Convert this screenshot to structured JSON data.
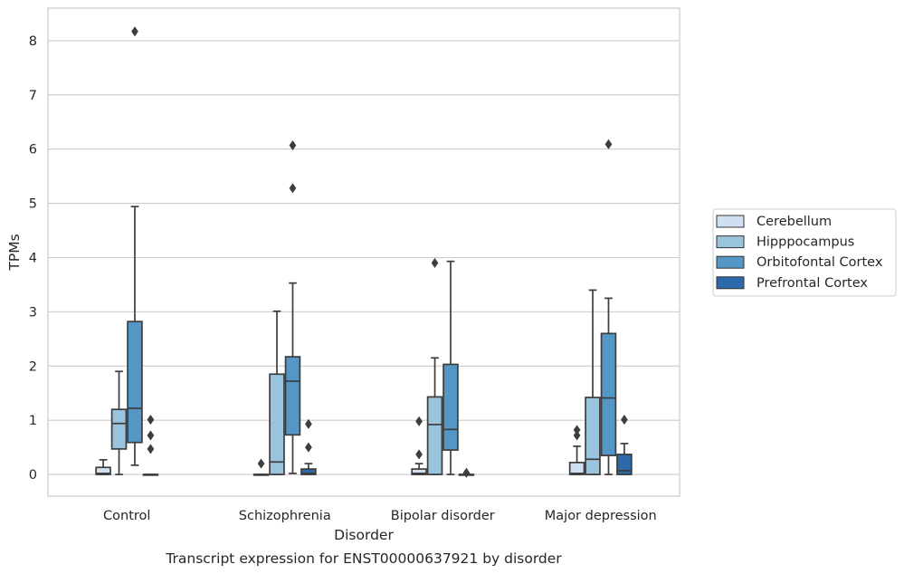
{
  "chart_data": {
    "type": "box",
    "title": "",
    "caption": "Transcript expression for ENST00000637921 by disorder",
    "xlabel": "Disorder",
    "ylabel": "TPMs",
    "ylim": [
      -0.4,
      8.6
    ],
    "yticks": [
      0,
      1,
      2,
      3,
      4,
      5,
      6,
      7,
      8
    ],
    "categories": [
      "Control",
      "Schizophrenia",
      "Bipolar disorder",
      "Major depression"
    ],
    "legend_placement": "right",
    "grid": true,
    "series": [
      {
        "name": "Cerebellum",
        "color": "#d1e0f0",
        "boxes": [
          {
            "q1": 0,
            "median": 0.02,
            "q3": 0.13,
            "whisker_low": 0,
            "whisker_high": 0.27,
            "outliers": []
          },
          {
            "q1": 0,
            "median": 0,
            "q3": 0,
            "whisker_low": 0,
            "whisker_high": 0,
            "outliers": [
              0.2
            ]
          },
          {
            "q1": 0,
            "median": 0.02,
            "q3": 0.1,
            "whisker_low": 0,
            "whisker_high": 0.2,
            "outliers": [
              0.37,
              0.98
            ]
          },
          {
            "q1": 0,
            "median": 0.02,
            "q3": 0.22,
            "whisker_low": 0,
            "whisker_high": 0.52,
            "outliers": [
              0.72,
              0.82
            ]
          }
        ]
      },
      {
        "name": "Hipppocampus",
        "color": "#9ac3dd",
        "boxes": [
          {
            "q1": 0.47,
            "median": 0.94,
            "q3": 1.2,
            "whisker_low": 0,
            "whisker_high": 1.9,
            "outliers": []
          },
          {
            "q1": 0,
            "median": 0.23,
            "q3": 1.85,
            "whisker_low": 0,
            "whisker_high": 3.01,
            "outliers": []
          },
          {
            "q1": 0,
            "median": 0.92,
            "q3": 1.43,
            "whisker_low": 0,
            "whisker_high": 2.15,
            "outliers": [
              3.9
            ]
          },
          {
            "q1": 0,
            "median": 0.28,
            "q3": 1.42,
            "whisker_low": 0,
            "whisker_high": 3.4,
            "outliers": []
          }
        ]
      },
      {
        "name": "Orbitofontal Cortex",
        "color": "#5496c5",
        "boxes": [
          {
            "q1": 0.59,
            "median": 1.22,
            "q3": 2.82,
            "whisker_low": 0.17,
            "whisker_high": 4.94,
            "outliers": [
              8.17
            ]
          },
          {
            "q1": 0.73,
            "median": 1.72,
            "q3": 2.17,
            "whisker_low": 0.02,
            "whisker_high": 3.53,
            "outliers": [
              5.28,
              6.07
            ]
          },
          {
            "q1": 0.45,
            "median": 0.83,
            "q3": 2.03,
            "whisker_low": 0,
            "whisker_high": 3.93,
            "outliers": []
          },
          {
            "q1": 0.35,
            "median": 1.41,
            "q3": 2.6,
            "whisker_low": 0,
            "whisker_high": 3.25,
            "outliers": [
              6.09
            ]
          }
        ]
      },
      {
        "name": "Prefrontal Cortex",
        "color": "#2b69a8",
        "boxes": [
          {
            "q1": 0,
            "median": 0,
            "q3": 0,
            "whisker_low": 0,
            "whisker_high": 0,
            "outliers": [
              0.47,
              0.72,
              1.01
            ]
          },
          {
            "q1": 0,
            "median": 0.02,
            "q3": 0.1,
            "whisker_low": 0,
            "whisker_high": 0.2,
            "outliers": [
              0.5,
              0.93
            ]
          },
          {
            "q1": 0,
            "median": 0,
            "q3": 0,
            "whisker_low": 0,
            "whisker_high": 0,
            "outliers": [
              0.03
            ]
          },
          {
            "q1": 0,
            "median": 0.07,
            "q3": 0.37,
            "whisker_low": 0,
            "whisker_high": 0.57,
            "outliers": [
              1.01
            ]
          }
        ]
      }
    ]
  }
}
